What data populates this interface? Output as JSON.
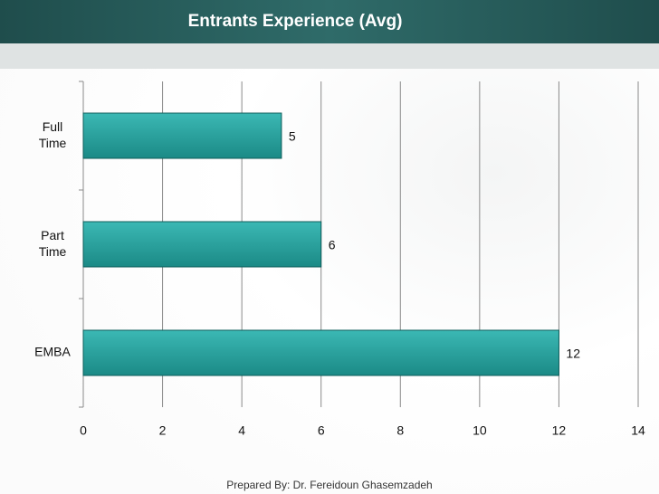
{
  "chart_data": {
    "type": "bar",
    "orientation": "horizontal",
    "title": "Entrants Experience (Avg)",
    "categories": [
      "Full Time",
      "Part Time",
      "EMBA"
    ],
    "values": [
      5,
      6,
      12
    ],
    "color": "#26a19e",
    "xlim": [
      0,
      14
    ],
    "xticks": [
      0,
      2,
      4,
      6,
      8,
      10,
      12,
      14
    ],
    "grid": true,
    "footer": "Prepared By: Dr. Fereidoun Ghasemzadeh"
  }
}
